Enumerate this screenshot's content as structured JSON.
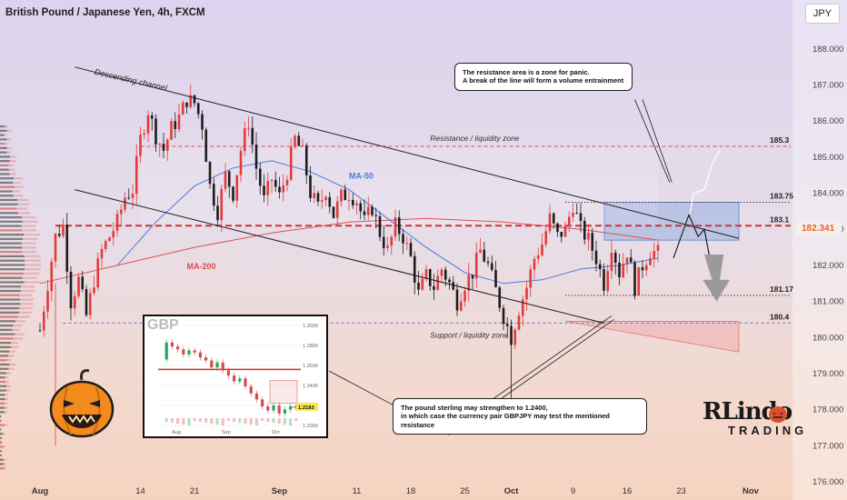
{
  "title": "British Pound / Japanese Yen, 4h, FXCM",
  "currency": "JPY",
  "current_price": "182.341",
  "chart_data": {
    "type": "candlestick",
    "title": "British Pound / Japanese Yen, 4h, FXCM",
    "ylim": [
      176.0,
      188.5
    ],
    "y_ticks": [
      "188.000",
      "187.000",
      "186.000",
      "185.000",
      "184.000",
      "183.000",
      "182.000",
      "181.000",
      "180.000",
      "179.000",
      "178.000",
      "177.000",
      "176.000"
    ],
    "x_ticks": [
      {
        "label": "Aug",
        "bold": true,
        "day": 0
      },
      {
        "label": "14",
        "day": 13
      },
      {
        "label": "21",
        "day": 20
      },
      {
        "label": "Sep",
        "bold": true,
        "day": 31
      },
      {
        "label": "11",
        "day": 41
      },
      {
        "label": "18",
        "day": 48
      },
      {
        "label": "25",
        "day": 55
      },
      {
        "label": "Oct",
        "bold": true,
        "day": 61
      },
      {
        "label": "9",
        "day": 69
      },
      {
        "label": "16",
        "day": 76
      },
      {
        "label": "23",
        "day": 83
      },
      {
        "label": "Nov",
        "bold": true,
        "day": 92
      }
    ],
    "price_path": [
      [
        0,
        180.2
      ],
      [
        2,
        182.8
      ],
      [
        3,
        183.1
      ],
      [
        4,
        181.0
      ],
      [
        5,
        181.6
      ],
      [
        6,
        180.6
      ],
      [
        7,
        181.6
      ],
      [
        8,
        182.4
      ],
      [
        9,
        182.8
      ],
      [
        10,
        183.2
      ],
      [
        11,
        183.9
      ],
      [
        12,
        184.1
      ],
      [
        13,
        185.5
      ],
      [
        14,
        186.3
      ],
      [
        15,
        185.6
      ],
      [
        16,
        185.2
      ],
      [
        17,
        185.8
      ],
      [
        18,
        186.1
      ],
      [
        19,
        186.6
      ],
      [
        20,
        186.5
      ],
      [
        21,
        185.9
      ],
      [
        22,
        184.2
      ],
      [
        23,
        183.5
      ],
      [
        24,
        184.5
      ],
      [
        25,
        184.0
      ],
      [
        26,
        185.2
      ],
      [
        27,
        186.0
      ],
      [
        28,
        184.7
      ],
      [
        29,
        183.8
      ],
      [
        30,
        184.4
      ],
      [
        31,
        183.9
      ],
      [
        32,
        184.6
      ],
      [
        33,
        185.5
      ],
      [
        34,
        185.1
      ],
      [
        35,
        184.0
      ],
      [
        36,
        183.6
      ],
      [
        37,
        184.1
      ],
      [
        38,
        183.4
      ],
      [
        39,
        183.9
      ],
      [
        40,
        184.0
      ],
      [
        41,
        183.8
      ],
      [
        42,
        183.2
      ],
      [
        43,
        183.6
      ],
      [
        44,
        182.9
      ],
      [
        45,
        182.4
      ],
      [
        46,
        183.1
      ],
      [
        47,
        182.8
      ],
      [
        48,
        182.2
      ],
      [
        49,
        181.2
      ],
      [
        50,
        181.7
      ],
      [
        51,
        181.4
      ],
      [
        52,
        181.9
      ],
      [
        53,
        181.5
      ],
      [
        54,
        181.0
      ],
      [
        55,
        181.5
      ],
      [
        56,
        181.8
      ],
      [
        57,
        182.4
      ],
      [
        58,
        182.0
      ],
      [
        59,
        181.3
      ],
      [
        60,
        180.6
      ],
      [
        61,
        180.0
      ],
      [
        62,
        180.8
      ],
      [
        63,
        181.4
      ],
      [
        64,
        182.2
      ],
      [
        65,
        182.6
      ],
      [
        66,
        183.3
      ],
      [
        67,
        182.8
      ],
      [
        68,
        183.0
      ],
      [
        69,
        183.7
      ],
      [
        70,
        183.0
      ],
      [
        71,
        182.7
      ],
      [
        72,
        182.2
      ],
      [
        73,
        181.5
      ],
      [
        74,
        182.6
      ],
      [
        75,
        181.8
      ],
      [
        76,
        182.4
      ],
      [
        77,
        181.4
      ],
      [
        78,
        182.0
      ],
      [
        79,
        182.4
      ],
      [
        80,
        182.34
      ]
    ],
    "ma50_path": [
      [
        10,
        182.0
      ],
      [
        15,
        183.2
      ],
      [
        20,
        184.2
      ],
      [
        25,
        184.7
      ],
      [
        30,
        184.9
      ],
      [
        35,
        184.6
      ],
      [
        40,
        184.1
      ],
      [
        45,
        183.3
      ],
      [
        50,
        182.5
      ],
      [
        55,
        181.8
      ],
      [
        60,
        181.5
      ],
      [
        65,
        181.6
      ],
      [
        70,
        181.9
      ],
      [
        75,
        182.0
      ],
      [
        80,
        182.2
      ]
    ],
    "ma200_path": [
      [
        0,
        181.5
      ],
      [
        10,
        182.0
      ],
      [
        20,
        182.5
      ],
      [
        30,
        182.9
      ],
      [
        40,
        183.2
      ],
      [
        50,
        183.3
      ],
      [
        60,
        183.2
      ],
      [
        70,
        183.0
      ],
      [
        80,
        182.7
      ]
    ],
    "series": [
      {
        "name": "MA-50",
        "color": "#4a7be0"
      },
      {
        "name": "MA-200",
        "color": "#e04a4a"
      }
    ],
    "levels": [
      {
        "value": 185.3,
        "label": "185.3",
        "style": "dashed-thin"
      },
      {
        "value": 183.75,
        "label": "183.75",
        "style": "dotted"
      },
      {
        "value": 183.1,
        "label": "183.1",
        "style": "dashed-thick"
      },
      {
        "value": 181.17,
        "label": "181.17",
        "style": "dotted"
      },
      {
        "value": 180.4,
        "label": "180.4",
        "style": "dotted-blue"
      }
    ],
    "annotations": {
      "channel": "Descending channel",
      "ma50": "MA-50",
      "ma200": "MA-200",
      "resistance": "Resistance / liquidity zone",
      "support": "Support / liquidity zone"
    }
  },
  "notes": {
    "top_line1": "The resistance area is a zone for panic.",
    "top_line2": "A break of the line will form a volume entrainment",
    "bottom_line1": "The pound sterling may strengthen to 1.2400,",
    "bottom_line2": "in which case the currency pair GBPJPY may test the mentioned resistance"
  },
  "inset": {
    "title": "GBP",
    "y_ticks": [
      "1.3000",
      "1.2800",
      "1.2600",
      "1.2400",
      "1.2200",
      "1.2000"
    ],
    "x_ticks": [
      "Aug",
      "Sep",
      "Oct"
    ],
    "price_label": "1.2183",
    "path": [
      1.266,
      1.283,
      1.279,
      1.276,
      1.271,
      1.275,
      1.273,
      1.268,
      1.265,
      1.258,
      1.263,
      1.255,
      1.25,
      1.244,
      1.247,
      1.239,
      1.232,
      1.226,
      1.219,
      1.215,
      1.22,
      1.212,
      1.216,
      1.219,
      1.2183
    ]
  },
  "logo": {
    "main": "RLindo",
    "sub": "TRADING"
  }
}
